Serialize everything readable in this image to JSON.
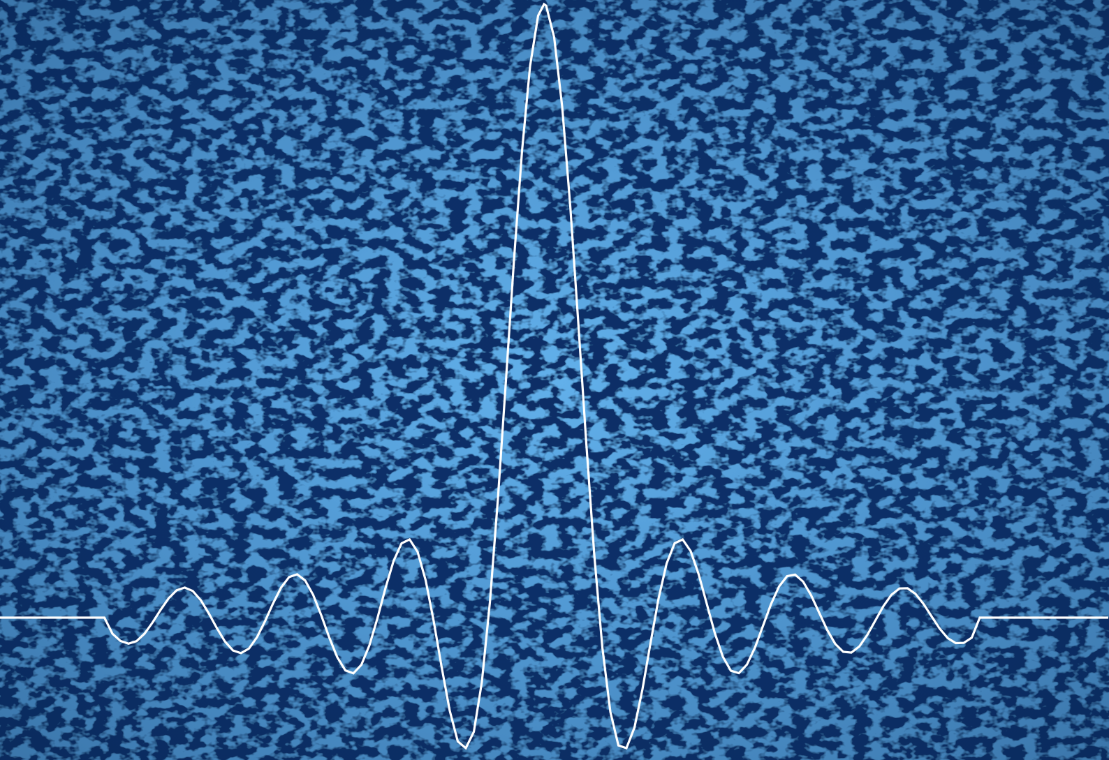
{
  "colors": {
    "background_dark": "#082f66",
    "background_mid": "#0d3f82",
    "speckle": "#1f6fd0",
    "speckle_light": "#2f86e8",
    "waveform_stroke": "#ffffff"
  },
  "artwork": {
    "subject": "sinc-waveform",
    "texture": "pebbled-leather"
  },
  "chart_data": {
    "type": "line",
    "function": "sinc",
    "series": [
      {
        "main_lobe_peak": 1.0,
        "baseline": 0.0
      }
    ],
    "xlim": [
      -31.4,
      31.4
    ],
    "ylim": [
      -0.22,
      1.0
    ]
  }
}
